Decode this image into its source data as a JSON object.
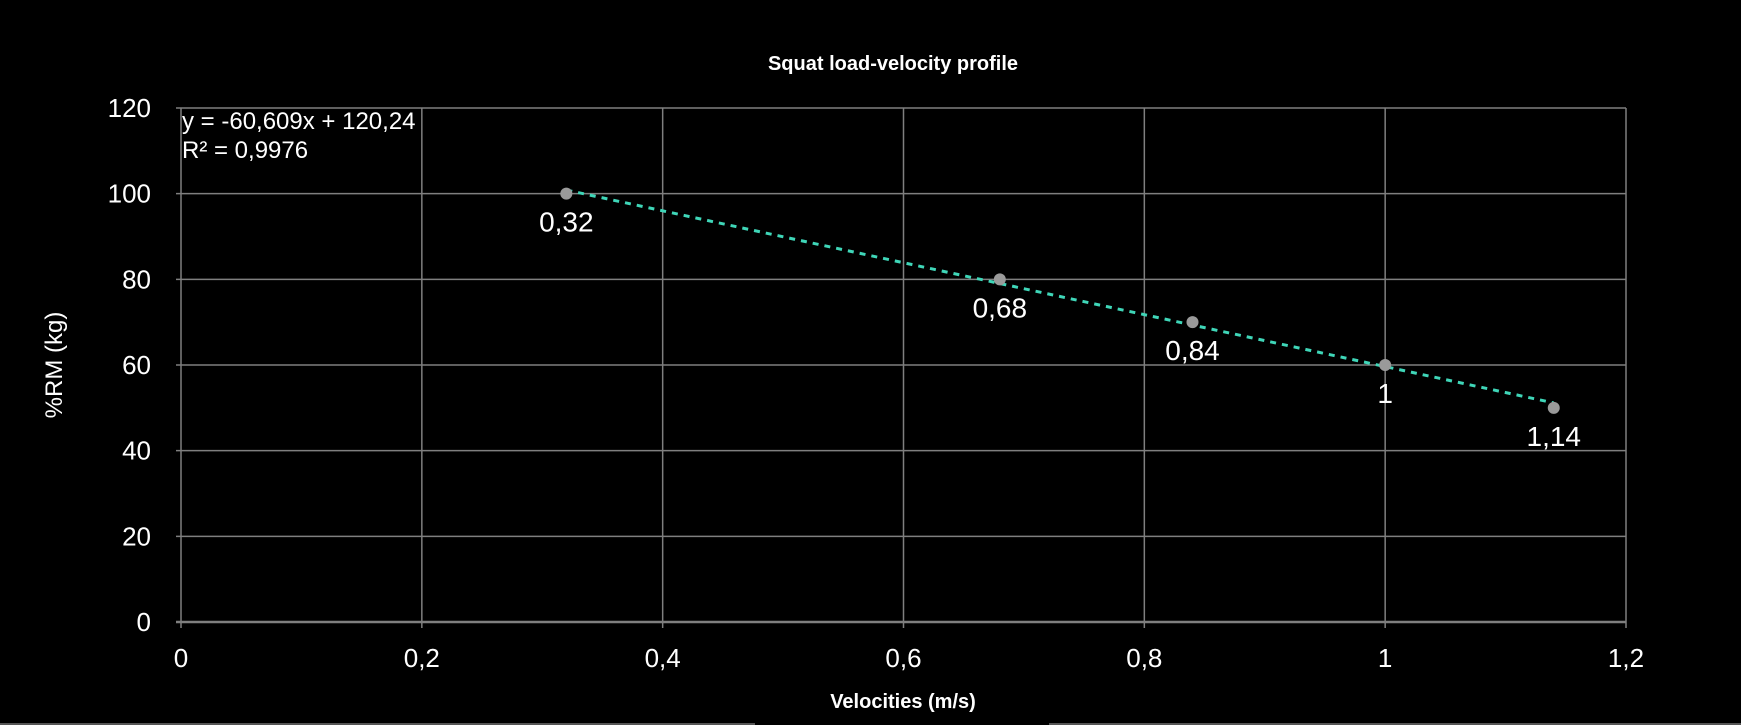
{
  "chart_data": {
    "type": "scatter",
    "title": "Squat load-velocity profile",
    "xlabel": "Velocities (m/s)",
    "ylabel": "%RM (kg)",
    "xlim": [
      0,
      1.2
    ],
    "ylim": [
      0,
      120
    ],
    "x_ticks": [
      "0",
      "0,2",
      "0,4",
      "0,6",
      "0,8",
      "1",
      "1,2"
    ],
    "y_ticks": [
      "0",
      "20",
      "40",
      "60",
      "80",
      "100",
      "120"
    ],
    "grid": true,
    "points": [
      {
        "x": 0.32,
        "y": 100,
        "label": "0,32"
      },
      {
        "x": 0.68,
        "y": 80,
        "label": "0,68"
      },
      {
        "x": 0.84,
        "y": 70,
        "label": "0,84"
      },
      {
        "x": 1.0,
        "y": 60,
        "label": "1"
      },
      {
        "x": 1.14,
        "y": 50,
        "label": "1,14"
      }
    ],
    "trendline": {
      "type": "linear",
      "slope": -60.609,
      "intercept": 120.24,
      "equation": "y = -60,609x + 120,24",
      "r_squared": "R² = 0,9976",
      "style": "dotted"
    },
    "colors": {
      "background": "#000000",
      "point": "#9a9a9a",
      "trendline": "#3fd6b8",
      "grid": "#7f7f7f",
      "text": "#ffffff"
    }
  }
}
